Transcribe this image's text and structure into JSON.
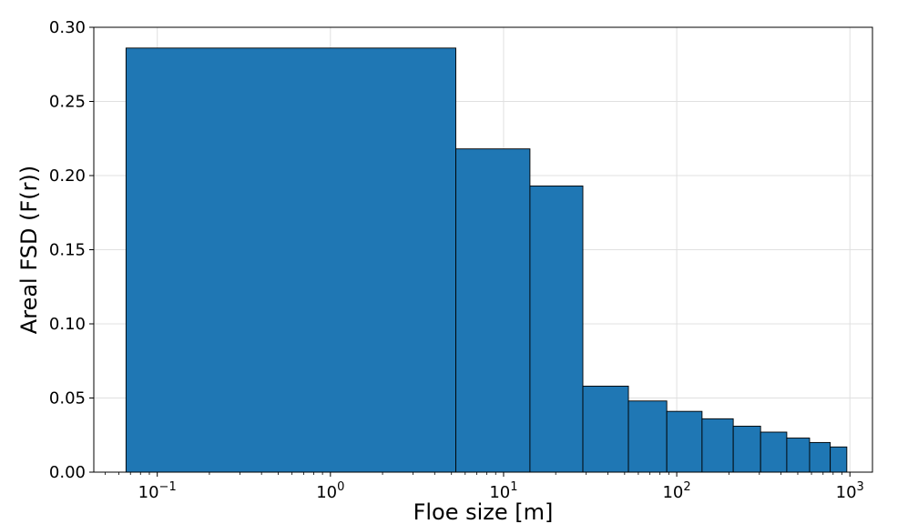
{
  "chart_data": {
    "type": "bar",
    "title": "",
    "xlabel": "Floe size [m]",
    "ylabel": "Areal FSD (F(r))",
    "x_scale": "log",
    "xlim": [
      0.043,
      1350
    ],
    "ylim": [
      0,
      0.3
    ],
    "grid": true,
    "bar_color": "#1f77b4",
    "edge_color": "#000000",
    "y_ticks": [
      "0.00",
      "0.05",
      "0.10",
      "0.15",
      "0.20",
      "0.25",
      "0.30"
    ],
    "x_ticks": [
      {
        "base": "10",
        "exp": "−1",
        "value": 0.1
      },
      {
        "base": "10",
        "exp": "0",
        "value": 1
      },
      {
        "base": "10",
        "exp": "1",
        "value": 10
      },
      {
        "base": "10",
        "exp": "2",
        "value": 100
      },
      {
        "base": "10",
        "exp": "3",
        "value": 1000
      }
    ],
    "bins": [
      {
        "left": 0.066,
        "right": 5.3,
        "value": 0.286
      },
      {
        "left": 5.3,
        "right": 14.2,
        "value": 0.218
      },
      {
        "left": 14.2,
        "right": 28.7,
        "value": 0.193
      },
      {
        "left": 28.7,
        "right": 52.6,
        "value": 0.058
      },
      {
        "left": 52.6,
        "right": 87.6,
        "value": 0.048
      },
      {
        "left": 87.6,
        "right": 140,
        "value": 0.041
      },
      {
        "left": 140,
        "right": 212,
        "value": 0.036
      },
      {
        "left": 212,
        "right": 305,
        "value": 0.031
      },
      {
        "left": 305,
        "right": 432,
        "value": 0.027
      },
      {
        "left": 432,
        "right": 585,
        "value": 0.023
      },
      {
        "left": 585,
        "right": 770,
        "value": 0.02
      },
      {
        "left": 770,
        "right": 960,
        "value": 0.017
      }
    ]
  }
}
